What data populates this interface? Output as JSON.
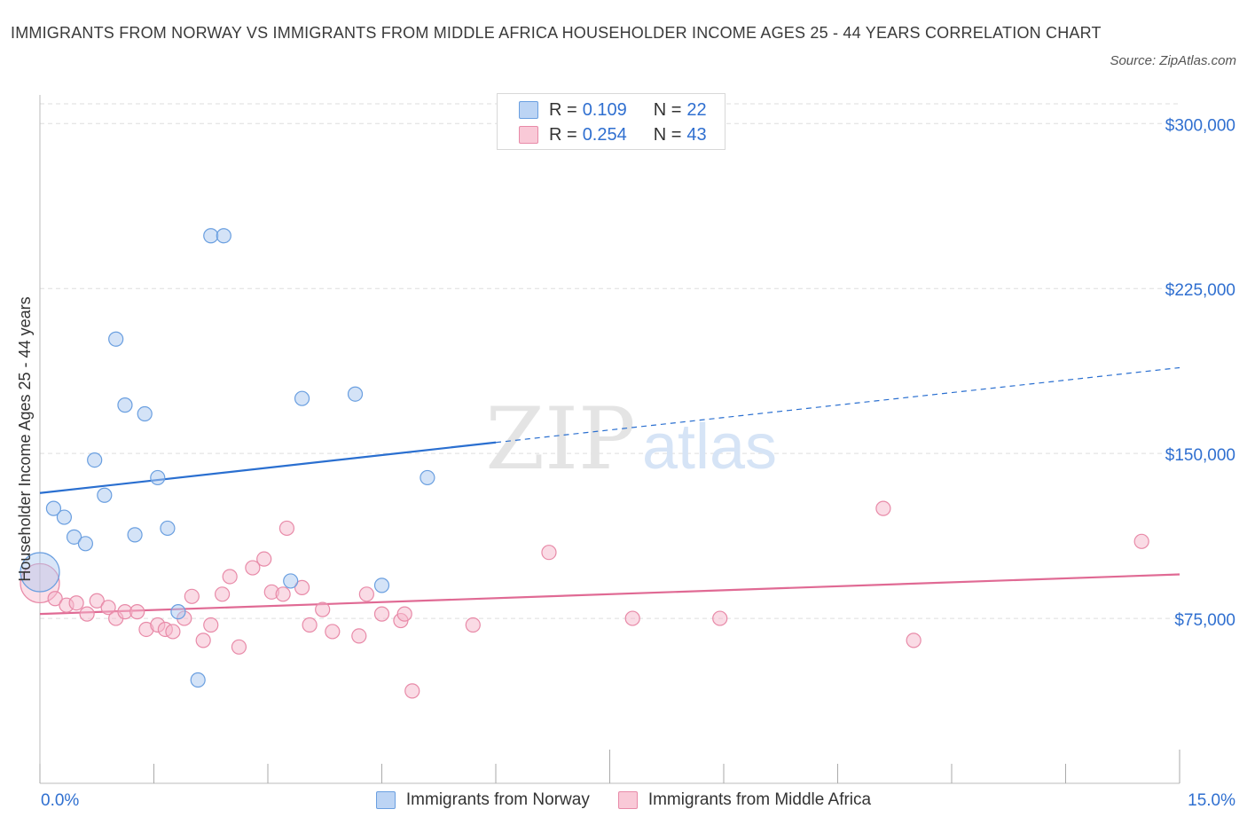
{
  "title": "IMMIGRANTS FROM NORWAY VS IMMIGRANTS FROM MIDDLE AFRICA HOUSEHOLDER INCOME AGES 25 - 44 YEARS CORRELATION CHART",
  "source": "Source: ZipAtlas.com",
  "watermark": {
    "zip": "ZIP",
    "atlas": "atlas"
  },
  "colors": {
    "norway_fill": "#aac8f0",
    "norway_stroke": "#6a9fe0",
    "norway_line": "#2a6fd0",
    "africa_fill": "#f6b8cb",
    "africa_stroke": "#e88aa8",
    "africa_line": "#e06a94",
    "axis_label": "#2f6fd0",
    "grid": "#dddddd"
  },
  "legend": {
    "rows": [
      {
        "r_label": "R = ",
        "r_value": "0.109",
        "n_label": "N = ",
        "n_value": "22"
      },
      {
        "r_label": "R = ",
        "r_value": "0.254",
        "n_label": "N = ",
        "n_value": "43"
      }
    ]
  },
  "bottom_legend": {
    "norway": "Immigrants from Norway",
    "africa": "Immigrants from Middle Africa"
  },
  "chart_data": {
    "type": "scatter",
    "title": "IMMIGRANTS FROM NORWAY VS IMMIGRANTS FROM MIDDLE AFRICA HOUSEHOLDER INCOME AGES 25 - 44 YEARS CORRELATION CHART",
    "xlabel": "",
    "ylabel": "Householder Income Ages 25 - 44 years",
    "xlim": [
      0,
      15
    ],
    "ylim": [
      0,
      300000
    ],
    "x_tick_labels": [
      "0.0%",
      "15.0%"
    ],
    "y_ticks": [
      75000,
      150000,
      225000,
      300000
    ],
    "y_tick_labels": [
      "$75,000",
      "$150,000",
      "$225,000",
      "$300,000"
    ],
    "grid": true,
    "series": [
      {
        "name": "Immigrants from Norway",
        "r": 0.109,
        "n": 22,
        "trend": {
          "x0": 0,
          "y0": 132000,
          "x1": 6,
          "y1": 155000,
          "dashed_to_x": 15,
          "dashed_to_y": 189000
        },
        "points": [
          {
            "x": 0.0,
            "y": 96000,
            "big": true
          },
          {
            "x": 0.18,
            "y": 125000
          },
          {
            "x": 0.32,
            "y": 121000
          },
          {
            "x": 0.45,
            "y": 112000
          },
          {
            "x": 0.6,
            "y": 109000
          },
          {
            "x": 0.72,
            "y": 147000
          },
          {
            "x": 0.85,
            "y": 131000
          },
          {
            "x": 1.0,
            "y": 202000
          },
          {
            "x": 1.12,
            "y": 172000
          },
          {
            "x": 1.25,
            "y": 113000
          },
          {
            "x": 1.38,
            "y": 168000
          },
          {
            "x": 1.55,
            "y": 139000
          },
          {
            "x": 1.68,
            "y": 116000
          },
          {
            "x": 1.82,
            "y": 78000
          },
          {
            "x": 2.08,
            "y": 47000
          },
          {
            "x": 2.25,
            "y": 249000
          },
          {
            "x": 2.42,
            "y": 249000
          },
          {
            "x": 3.3,
            "y": 92000
          },
          {
            "x": 3.45,
            "y": 175000
          },
          {
            "x": 4.15,
            "y": 177000
          },
          {
            "x": 4.5,
            "y": 90000
          },
          {
            "x": 5.1,
            "y": 139000
          }
        ]
      },
      {
        "name": "Immigrants from Middle Africa",
        "r": 0.254,
        "n": 43,
        "trend": {
          "x0": 0,
          "y0": 77000,
          "x1": 15,
          "y1": 95000
        },
        "points": [
          {
            "x": 0.0,
            "y": 91000,
            "big": true
          },
          {
            "x": 0.2,
            "y": 84000
          },
          {
            "x": 0.35,
            "y": 81000
          },
          {
            "x": 0.48,
            "y": 82000
          },
          {
            "x": 0.62,
            "y": 77000
          },
          {
            "x": 0.75,
            "y": 83000
          },
          {
            "x": 0.9,
            "y": 80000
          },
          {
            "x": 1.0,
            "y": 75000
          },
          {
            "x": 1.12,
            "y": 78000
          },
          {
            "x": 1.28,
            "y": 78000
          },
          {
            "x": 1.4,
            "y": 70000
          },
          {
            "x": 1.55,
            "y": 72000
          },
          {
            "x": 1.65,
            "y": 70000
          },
          {
            "x": 1.75,
            "y": 69000
          },
          {
            "x": 1.9,
            "y": 75000
          },
          {
            "x": 2.0,
            "y": 85000
          },
          {
            "x": 2.15,
            "y": 65000
          },
          {
            "x": 2.25,
            "y": 72000
          },
          {
            "x": 2.4,
            "y": 86000
          },
          {
            "x": 2.5,
            "y": 94000
          },
          {
            "x": 2.62,
            "y": 62000
          },
          {
            "x": 2.8,
            "y": 98000
          },
          {
            "x": 2.95,
            "y": 102000
          },
          {
            "x": 3.05,
            "y": 87000
          },
          {
            "x": 3.2,
            "y": 86000
          },
          {
            "x": 3.25,
            "y": 116000
          },
          {
            "x": 3.45,
            "y": 89000
          },
          {
            "x": 3.55,
            "y": 72000
          },
          {
            "x": 3.72,
            "y": 79000
          },
          {
            "x": 3.85,
            "y": 69000
          },
          {
            "x": 4.2,
            "y": 67000
          },
          {
            "x": 4.3,
            "y": 86000
          },
          {
            "x": 4.5,
            "y": 77000
          },
          {
            "x": 4.75,
            "y": 74000
          },
          {
            "x": 4.8,
            "y": 77000
          },
          {
            "x": 4.9,
            "y": 42000
          },
          {
            "x": 5.7,
            "y": 72000
          },
          {
            "x": 6.7,
            "y": 105000
          },
          {
            "x": 7.8,
            "y": 75000
          },
          {
            "x": 8.95,
            "y": 75000
          },
          {
            "x": 11.1,
            "y": 125000
          },
          {
            "x": 11.5,
            "y": 65000
          },
          {
            "x": 14.5,
            "y": 110000
          }
        ]
      }
    ]
  }
}
